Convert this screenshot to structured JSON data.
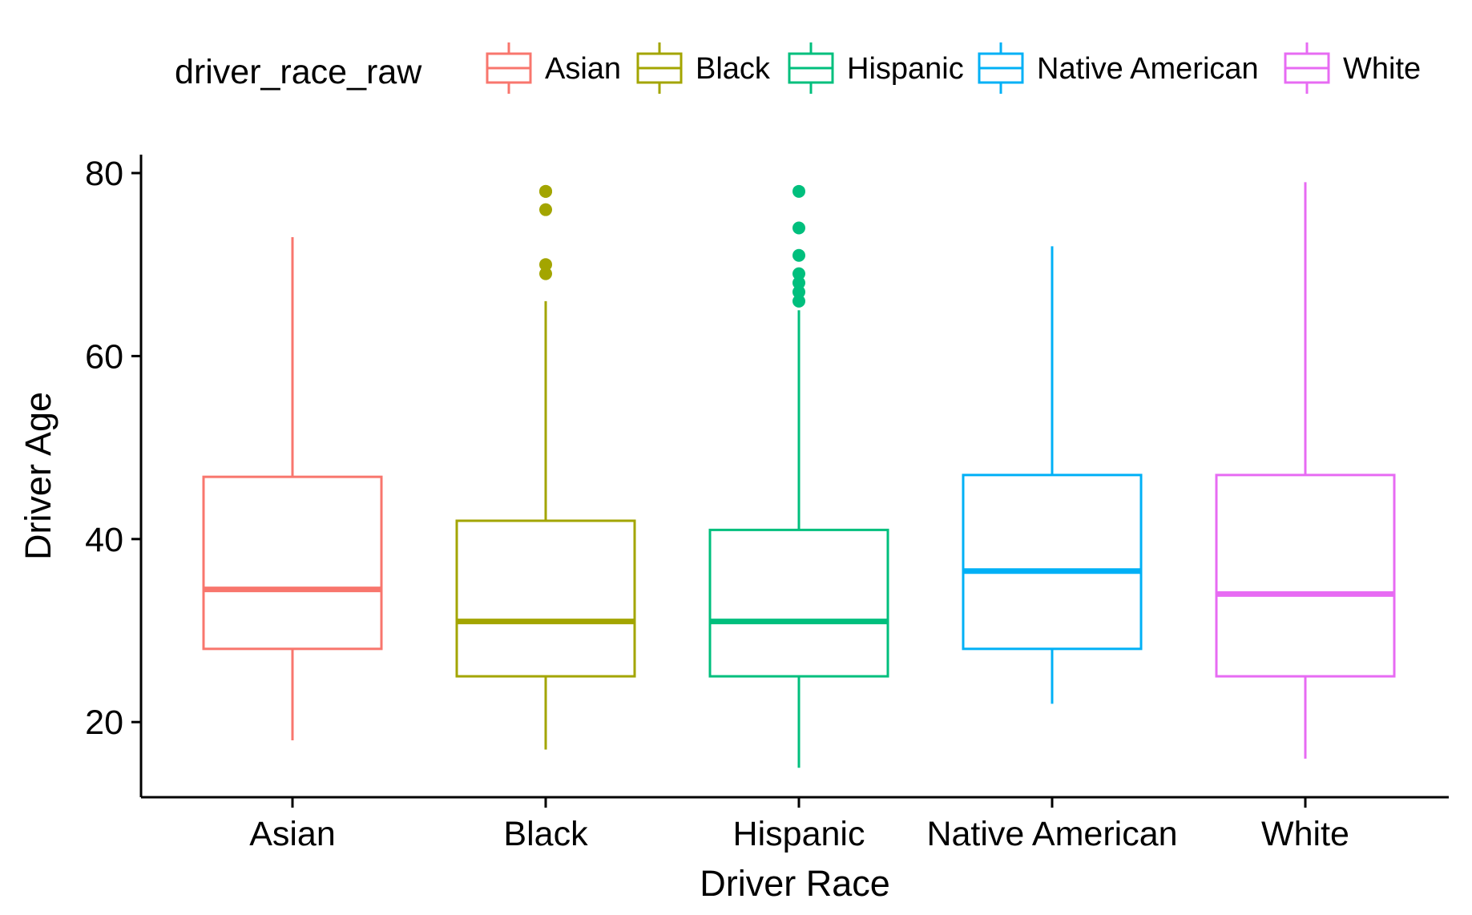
{
  "chart_data": {
    "type": "boxplot",
    "xlabel": "Driver Race",
    "ylabel": "Driver Age",
    "categories": [
      "Asian",
      "Black",
      "Hispanic",
      "Native American",
      "White"
    ],
    "ylim": [
      12,
      82
    ],
    "yticks": [
      20,
      40,
      60,
      80
    ],
    "grid": false,
    "legend": {
      "title": "driver_race_raw",
      "position": "top",
      "entries": [
        "Asian",
        "Black",
        "Hispanic",
        "Native American",
        "White"
      ]
    },
    "colors": {
      "Asian": "#F8766D",
      "Black": "#A3A500",
      "Hispanic": "#00BF7D",
      "Native American": "#00B0F6",
      "White": "#E76BF3"
    },
    "series": [
      {
        "category": "Asian",
        "whisker_low": 18,
        "q1": 28,
        "median": 34.5,
        "q3": 46.8,
        "whisker_high": 73,
        "outliers": []
      },
      {
        "category": "Black",
        "whisker_low": 17,
        "q1": 25,
        "median": 31,
        "q3": 42,
        "whisker_high": 66,
        "outliers": [
          69,
          70,
          76,
          78,
          78
        ]
      },
      {
        "category": "Hispanic",
        "whisker_low": 15,
        "q1": 25,
        "median": 31,
        "q3": 41,
        "whisker_high": 65,
        "outliers": [
          66,
          67,
          68,
          69,
          71,
          74,
          78
        ]
      },
      {
        "category": "Native American",
        "whisker_low": 22,
        "q1": 28,
        "median": 36.5,
        "q3": 47,
        "whisker_high": 72,
        "outliers": []
      },
      {
        "category": "White",
        "whisker_low": 16,
        "q1": 25,
        "median": 34,
        "q3": 47,
        "whisker_high": 79,
        "outliers": []
      }
    ]
  }
}
